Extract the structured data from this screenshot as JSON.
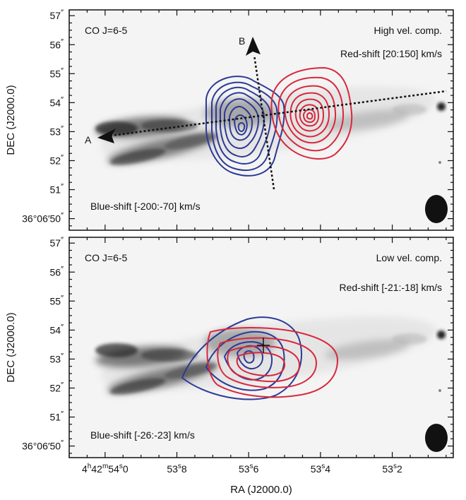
{
  "chart_data": [
    {
      "type": "contour",
      "panel_label": "CO J=6-5",
      "component": "High vel. comp.",
      "red_label": "Red-shift [20:150] km/s",
      "blue_label": "Blue-shift [-200:-70] km/s",
      "cut_labels": [
        "A",
        "B"
      ],
      "colors": {
        "red": "#d8283c",
        "blue": "#2c3a96",
        "beam": "#111111"
      }
    },
    {
      "type": "contour",
      "panel_label": "CO J=6-5",
      "component": "Low vel. comp.",
      "red_label": "Red-shift [-21:-18] km/s",
      "blue_label": "Blue-shift [-26:-23] km/s",
      "colors": {
        "red": "#d8283c",
        "blue": "#2c3a96",
        "beam": "#111111"
      }
    }
  ],
  "axes": {
    "xlabel": "RA   (J2000.0)",
    "ylabel": "DEC   (J2000.0)",
    "x_ticks": [
      {
        "value": 54.0,
        "main": "4",
        "sup_h": "h",
        "mid": "42",
        "sup_m": "m",
        "sec": "54",
        "sup_s": "s",
        "frac": "0"
      },
      {
        "value": 53.8,
        "main": "53",
        "sup_s": "s",
        "frac": "8"
      },
      {
        "value": 53.6,
        "main": "53",
        "sup_s": "s",
        "frac": "6"
      },
      {
        "value": 53.4,
        "main": "53",
        "sup_s": "s",
        "frac": "4"
      },
      {
        "value": 53.2,
        "main": "53",
        "sup_s": "s",
        "frac": "2"
      }
    ],
    "y_ticks": [
      {
        "value": 57,
        "label": "57",
        "sup": "″"
      },
      {
        "value": 56,
        "label": "56",
        "sup": "″"
      },
      {
        "value": 55,
        "label": "55",
        "sup": "″"
      },
      {
        "value": 54,
        "label": "54",
        "sup": "″"
      },
      {
        "value": 53,
        "label": "53",
        "sup": "″"
      },
      {
        "value": 52,
        "label": "52",
        "sup": "″"
      },
      {
        "value": 51,
        "label": "51",
        "sup": "″"
      },
      {
        "value": 50,
        "label": "36°06′50",
        "sup": "″"
      }
    ],
    "x_range": [
      54.1,
      53.03
    ],
    "y_range": [
      49.6,
      57.2
    ]
  }
}
